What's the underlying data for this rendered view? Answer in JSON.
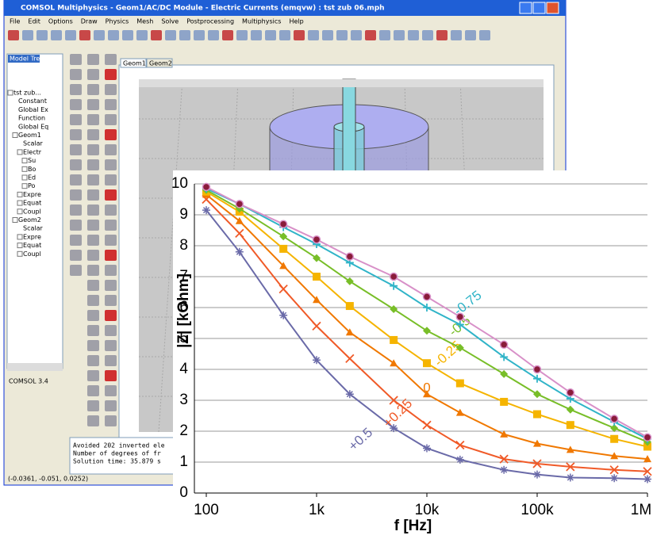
{
  "window": {
    "title": "COMSOL Multiphysics - Geom1/AC/DC Module - Electric Currents (emqvw) : tst zub 06.mph",
    "menu": [
      "File",
      "Edit",
      "Options",
      "Draw",
      "Physics",
      "Mesh",
      "Solve",
      "Postprocessing",
      "Multiphysics",
      "Help"
    ],
    "model_tree_tab": "Model Tree",
    "tree": [
      "tst zub...",
      "Constant",
      "Global Ex",
      "Function",
      "Global Eq",
      "Geom1",
      "Scalar",
      "Electr",
      "Su",
      "Bo",
      "Ed",
      "Po",
      "Expre",
      "Equat",
      "Coupl",
      "Geom2",
      "Scalar",
      "Expre",
      "Equat",
      "Coupl"
    ],
    "version": "COMSOL 3.4",
    "tabs": [
      "Geom1",
      "Geom2"
    ],
    "log": [
      "Avoided 202 inverted ele",
      "Number of degrees of fr",
      "Solution time: 35.879 s"
    ],
    "status": "(-0.0361, -0.051, 0.0252)"
  },
  "chart_data": {
    "type": "line",
    "xlabel": "f [Hz]",
    "ylabel": "|Z| [kOhm]",
    "xscale": "log",
    "grid": true,
    "x": [
      100,
      200,
      500,
      1000,
      2000,
      5000,
      10000,
      20000,
      50000,
      100000,
      200000,
      500000,
      1000000
    ],
    "xlim": [
      78,
      1000000
    ],
    "xticks": [
      100,
      {
        "value": 1000,
        "label": "1k"
      },
      {
        "value": 10000,
        "label": "10k"
      },
      {
        "value": 100000,
        "label": "100k"
      },
      {
        "value": 1000000,
        "label": "1M"
      }
    ],
    "ylim": [
      0,
      10
    ],
    "yticks": [
      0,
      1,
      2,
      3,
      4,
      5,
      6,
      7,
      8,
      9,
      10
    ],
    "series": [
      {
        "name": "+0.5",
        "color": "#6a6aa8",
        "marker": "asterisk",
        "values": [
          9.15,
          7.8,
          5.75,
          4.3,
          3.2,
          2.1,
          1.45,
          1.08,
          0.75,
          0.6,
          0.5,
          0.48,
          0.45
        ]
      },
      {
        "name": "+0.25",
        "color": "#f05a28",
        "marker": "cross",
        "values": [
          9.5,
          8.4,
          6.6,
          5.4,
          4.35,
          3.0,
          2.2,
          1.55,
          1.1,
          0.95,
          0.85,
          0.75,
          0.7
        ]
      },
      {
        "name": "0",
        "color": "#f07800",
        "marker": "triangle",
        "values": [
          9.65,
          8.8,
          7.35,
          6.25,
          5.2,
          4.2,
          3.2,
          2.6,
          1.9,
          1.6,
          1.4,
          1.2,
          1.1
        ]
      },
      {
        "name": "-0.25",
        "color": "#f5b400",
        "marker": "square",
        "values": [
          9.75,
          9.1,
          7.9,
          7.0,
          6.05,
          4.95,
          4.2,
          3.55,
          2.95,
          2.55,
          2.2,
          1.75,
          1.5
        ]
      },
      {
        "name": "-0.5",
        "color": "#78be28",
        "marker": "diamond",
        "values": [
          9.8,
          9.2,
          8.3,
          7.6,
          6.85,
          5.95,
          5.25,
          4.7,
          3.85,
          3.2,
          2.7,
          2.1,
          1.65
        ]
      },
      {
        "name": "-0.75",
        "color": "#30b4c8",
        "marker": "plus",
        "values": [
          9.85,
          9.35,
          8.6,
          8.05,
          7.45,
          6.7,
          6.0,
          5.45,
          4.4,
          3.7,
          3.05,
          2.3,
          1.75
        ]
      },
      {
        "color": "#d890c8",
        "marker": "circle",
        "values": [
          9.9,
          9.35,
          8.7,
          8.2,
          7.65,
          7.0,
          6.35,
          5.7,
          4.8,
          4.0,
          3.25,
          2.4,
          1.8
        ]
      }
    ]
  }
}
